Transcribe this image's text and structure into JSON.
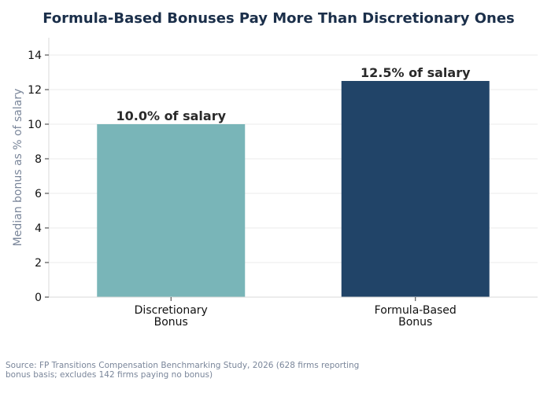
{
  "chart_data": {
    "type": "bar",
    "title": "Formula-Based Bonuses Pay More Than Discretionary Ones",
    "xlabel": "",
    "ylabel": "Median bonus as % of salary",
    "ylim": [
      0,
      15
    ],
    "yticks": [
      0,
      2,
      4,
      6,
      8,
      10,
      12,
      14
    ],
    "grid": true,
    "categories": [
      [
        "Discretionary",
        "Bonus"
      ],
      [
        "Formula-Based",
        "Bonus"
      ]
    ],
    "values": [
      10.0,
      12.5
    ],
    "data_labels": [
      "10.0% of salary",
      "12.5% of salary"
    ],
    "colors": [
      "#79b5b8",
      "#214468"
    ]
  },
  "source_note": "Source: FP Transitions Compensation Benchmarking Study, 2026 (628 firms reporting bonus basis; excludes 142 firms paying no bonus)"
}
